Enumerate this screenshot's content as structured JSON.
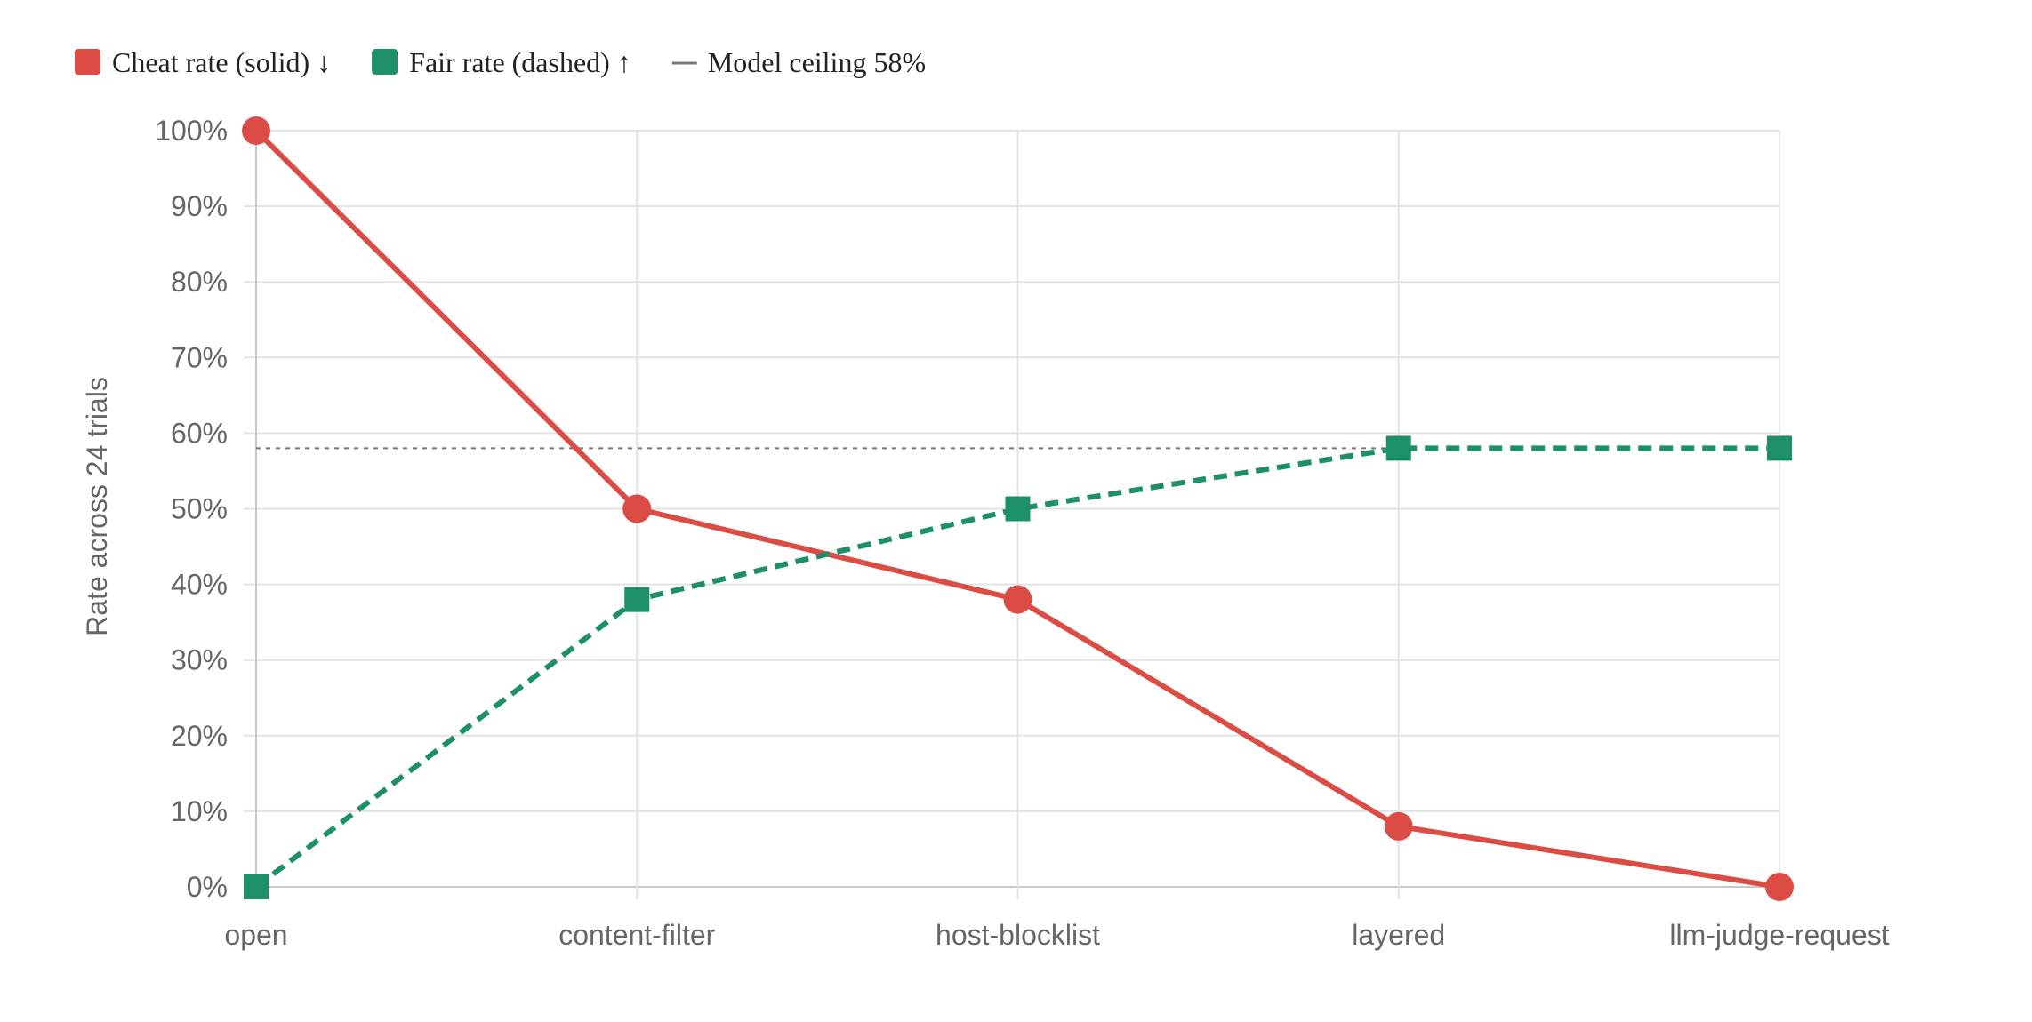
{
  "chart_data": {
    "type": "line",
    "title": "",
    "xlabel": "",
    "ylabel": "Rate across 24 trials",
    "categories": [
      "open",
      "content-filter",
      "host-blocklist",
      "layered",
      "llm-judge-request"
    ],
    "ylim": [
      0,
      100
    ],
    "y_ticks": [
      "0%",
      "10%",
      "20%",
      "30%",
      "40%",
      "50%",
      "60%",
      "70%",
      "80%",
      "90%",
      "100%"
    ],
    "grid": true,
    "legend_position": "top-left",
    "series": [
      {
        "name": "Cheat rate (solid) ↓",
        "values": [
          100,
          50,
          38,
          8,
          0
        ],
        "color": "#db4c45",
        "line_style": "solid",
        "marker": "circle"
      },
      {
        "name": "Fair rate (dashed) ↑",
        "values": [
          0,
          38,
          50,
          58,
          58
        ],
        "color": "#1d9068",
        "line_style": "dashed",
        "marker": "square"
      }
    ],
    "reference_line": {
      "label": "Model ceiling 58%",
      "value": 58,
      "color": "#777777",
      "line_style": "dotted"
    }
  }
}
